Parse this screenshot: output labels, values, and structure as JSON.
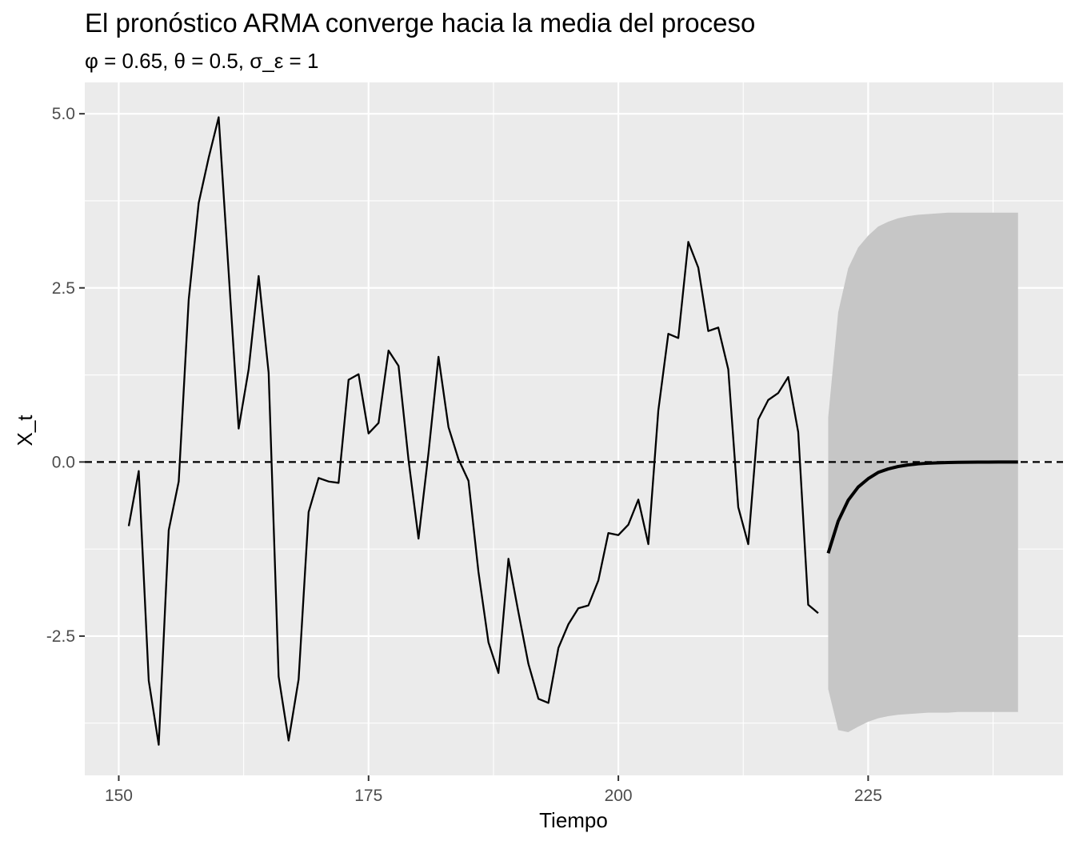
{
  "chart_data": {
    "type": "line",
    "title": "El pronóstico ARMA converge hacia la media del proceso",
    "subtitle": "φ = 0.65, θ = 0.5, σ_ε = 1",
    "xlabel": "Tiempo",
    "ylabel": "X_t",
    "xlim": [
      146.6,
      244.5
    ],
    "ylim": [
      -4.5,
      5.45
    ],
    "x_ticks": [
      150,
      175,
      200,
      225
    ],
    "x_tick_labels": [
      "150",
      "175",
      "200",
      "225"
    ],
    "x_minor_ticks": [
      162.5,
      187.5,
      212.5,
      237.5
    ],
    "y_ticks": [
      -2.5,
      0.0,
      2.5,
      5.0
    ],
    "y_tick_labels": [
      "-2.5",
      "0.0",
      "2.5",
      "5.0"
    ],
    "y_minor_ticks": [
      -3.75,
      -1.25,
      1.25,
      3.75
    ],
    "grid": true,
    "reference_line": {
      "y": 0,
      "style": "dashed"
    },
    "observed": {
      "x": [
        151,
        152,
        153,
        154,
        155,
        156,
        157,
        158,
        159,
        160,
        161,
        162,
        163,
        164,
        165,
        166,
        167,
        168,
        169,
        170,
        171,
        172,
        173,
        174,
        175,
        176,
        177,
        178,
        179,
        180,
        181,
        182,
        183,
        184,
        185,
        186,
        187,
        188,
        189,
        190,
        191,
        192,
        193,
        194,
        195,
        196,
        197,
        198,
        199,
        200,
        201,
        202,
        203,
        204,
        205,
        206,
        207,
        208,
        209,
        210,
        211,
        212,
        213,
        214,
        215,
        216,
        217,
        218,
        219,
        220
      ],
      "y": [
        -0.92,
        -0.13,
        -3.14,
        -4.06,
        -0.98,
        -0.28,
        2.33,
        3.72,
        4.37,
        4.95,
        2.72,
        0.48,
        1.33,
        2.67,
        1.28,
        -3.08,
        -4.0,
        -3.12,
        -0.72,
        -0.23,
        -0.28,
        -0.3,
        1.18,
        1.26,
        0.41,
        0.56,
        1.6,
        1.38,
        0.03,
        -1.1,
        0.13,
        1.51,
        0.5,
        0.04,
        -0.27,
        -1.58,
        -2.59,
        -3.03,
        -1.39,
        -2.16,
        -2.9,
        -3.4,
        -3.46,
        -2.67,
        -2.33,
        -2.1,
        -2.06,
        -1.7,
        -1.02,
        -1.05,
        -0.9,
        -0.54,
        -1.18,
        0.74,
        1.84,
        1.78,
        3.16,
        2.79,
        1.88,
        1.93,
        1.33,
        -0.65,
        -1.18,
        0.61,
        0.89,
        0.99,
        1.22,
        0.43,
        -2.05,
        -2.17
      ]
    },
    "forecast": {
      "x": [
        221,
        222,
        223,
        224,
        225,
        226,
        227,
        228,
        229,
        230,
        231,
        232,
        233,
        234,
        235,
        236,
        237,
        238,
        239,
        240
      ],
      "y": [
        -1.31,
        -0.85,
        -0.55,
        -0.36,
        -0.24,
        -0.15,
        -0.1,
        -0.065,
        -0.042,
        -0.027,
        -0.018,
        -0.012,
        -0.0075,
        -0.0049,
        -0.0032,
        -0.0021,
        -0.0013,
        -0.0009,
        -0.0006,
        -0.0004
      ],
      "lower": [
        -3.26,
        -3.85,
        -3.88,
        -3.8,
        -3.73,
        -3.68,
        -3.65,
        -3.63,
        -3.62,
        -3.61,
        -3.6,
        -3.6,
        -3.6,
        -3.59,
        -3.59,
        -3.59,
        -3.59,
        -3.59,
        -3.59,
        -3.59
      ],
      "upper": [
        0.64,
        2.15,
        2.78,
        3.08,
        3.25,
        3.38,
        3.45,
        3.5,
        3.53,
        3.55,
        3.56,
        3.57,
        3.58,
        3.58,
        3.58,
        3.58,
        3.58,
        3.58,
        3.58,
        3.58
      ]
    },
    "colors": {
      "panel": "#ebebeb",
      "grid": "#ffffff",
      "line": "#000000",
      "ribbon": "#c6c6c6",
      "tick_mark": "#333333"
    }
  }
}
